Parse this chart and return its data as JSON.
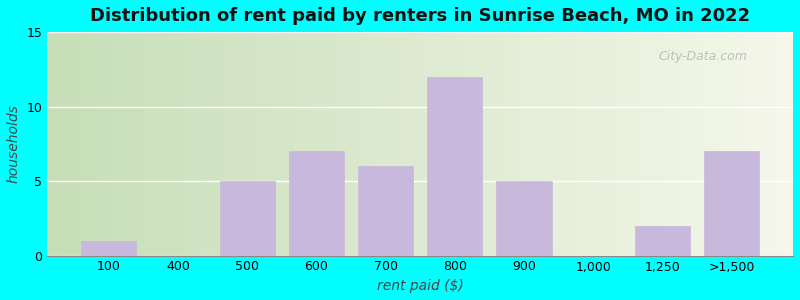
{
  "categories": [
    "100",
    "400",
    "500",
    "600",
    "700",
    "800",
    "900",
    "1,000",
    "1,250",
    ">1,500"
  ],
  "values": [
    1,
    0,
    5,
    7,
    6,
    12,
    5,
    0,
    2,
    7
  ],
  "bar_color": "#C8B8DC",
  "bar_edgecolor": "#C8B8DC",
  "title": "Distribution of rent paid by renters in Sunrise Beach, MO in 2022",
  "xlabel": "rent paid ($)",
  "ylabel": "households",
  "ylim": [
    0,
    15
  ],
  "yticks": [
    0,
    5,
    10,
    15
  ],
  "background_outer": "#00FFFF",
  "title_fontsize": 13,
  "axis_fontsize": 10,
  "watermark": "City-Data.com"
}
